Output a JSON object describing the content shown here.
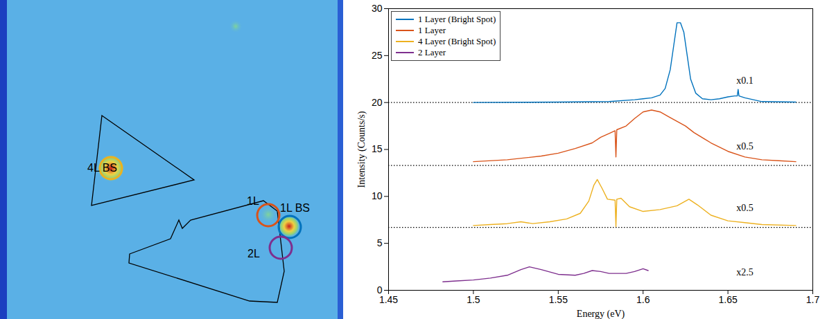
{
  "image": {
    "labels": [
      "4L BS",
      "1L",
      "1L BS",
      "2L"
    ]
  },
  "chart_data": {
    "type": "line",
    "xlabel": "Energy (eV)",
    "ylabel": "Intensity (Counts/s)",
    "xlim": [
      1.45,
      1.7
    ],
    "ylim": [
      0,
      30
    ],
    "xticks": [
      1.45,
      1.5,
      1.55,
      1.6,
      1.65,
      1.7
    ],
    "yticks": [
      0,
      5,
      10,
      15,
      20,
      25,
      30
    ],
    "legend": "top-left",
    "series": [
      {
        "name": "1 Layer (Bright Spot)",
        "color": "#0072BD",
        "baseline": 20,
        "x": [
          1.5,
          1.55,
          1.58,
          1.595,
          1.6,
          1.605,
          1.61,
          1.613,
          1.616,
          1.618,
          1.62,
          1.622,
          1.624,
          1.626,
          1.628,
          1.631,
          1.635,
          1.64,
          1.645,
          1.65,
          1.654,
          1.6555,
          1.656,
          1.6565,
          1.66,
          1.67,
          1.69
        ],
        "values": [
          20,
          20.05,
          20.1,
          20.3,
          20.4,
          20.5,
          20.8,
          21.5,
          23.5,
          26,
          28.5,
          28.5,
          27.5,
          25,
          22.5,
          21,
          20.4,
          20.3,
          20.4,
          20.6,
          20.7,
          20.7,
          21.4,
          20.7,
          20.5,
          20.1,
          20.05
        ]
      },
      {
        "name": "1 Layer",
        "color": "#D95319",
        "baseline": 13.3,
        "x": [
          1.5,
          1.52,
          1.54,
          1.55,
          1.56,
          1.57,
          1.575,
          1.58,
          1.5835,
          1.584,
          1.5845,
          1.59,
          1.595,
          1.6,
          1.605,
          1.61,
          1.615,
          1.62,
          1.625,
          1.63,
          1.64,
          1.65,
          1.66,
          1.67,
          1.68,
          1.69
        ],
        "values": [
          13.7,
          13.9,
          14.3,
          14.6,
          15.1,
          15.7,
          16.3,
          16.7,
          17,
          14.2,
          17.1,
          17.5,
          18.3,
          19,
          19.2,
          19,
          18.5,
          18,
          17.5,
          16.8,
          15.7,
          14.8,
          14.2,
          13.9,
          13.8,
          13.7
        ]
      },
      {
        "name": "4 Layer (Bright Spot)",
        "color": "#EDB120",
        "baseline": 6.7,
        "x": [
          1.5,
          1.51,
          1.52,
          1.528,
          1.535,
          1.545,
          1.555,
          1.563,
          1.568,
          1.571,
          1.573,
          1.576,
          1.579,
          1.5835,
          1.584,
          1.5845,
          1.587,
          1.592,
          1.6,
          1.61,
          1.62,
          1.627,
          1.632,
          1.64,
          1.65,
          1.66,
          1.67,
          1.69
        ],
        "values": [
          6.9,
          7,
          7.1,
          7.3,
          7.1,
          7.3,
          7.6,
          8.2,
          9.5,
          11.2,
          11.8,
          10.8,
          9.7,
          9.6,
          6.8,
          9.7,
          9.8,
          8.9,
          8.4,
          8.6,
          9,
          9.7,
          9.1,
          8,
          7.4,
          7.2,
          7,
          6.9
        ]
      },
      {
        "name": "2 Layer",
        "color": "#7E2F8E",
        "baseline": 0,
        "x": [
          1.482,
          1.49,
          1.5,
          1.51,
          1.52,
          1.528,
          1.533,
          1.54,
          1.55,
          1.56,
          1.565,
          1.57,
          1.575,
          1.58,
          1.59,
          1.595,
          1.6,
          1.603
        ],
        "values": [
          0.9,
          1,
          1.1,
          1.3,
          1.6,
          2.2,
          2.5,
          2.2,
          1.7,
          1.6,
          1.8,
          2.1,
          2,
          1.8,
          1.8,
          2,
          2.3,
          2.1
        ]
      }
    ],
    "annotations": [
      {
        "text": "x0.1",
        "x": 1.655,
        "y": 22.3
      },
      {
        "text": "x0.5",
        "x": 1.655,
        "y": 15.3
      },
      {
        "text": "x0.5",
        "x": 1.655,
        "y": 8.8
      },
      {
        "text": "x2.5",
        "x": 1.655,
        "y": 1.9
      }
    ]
  }
}
